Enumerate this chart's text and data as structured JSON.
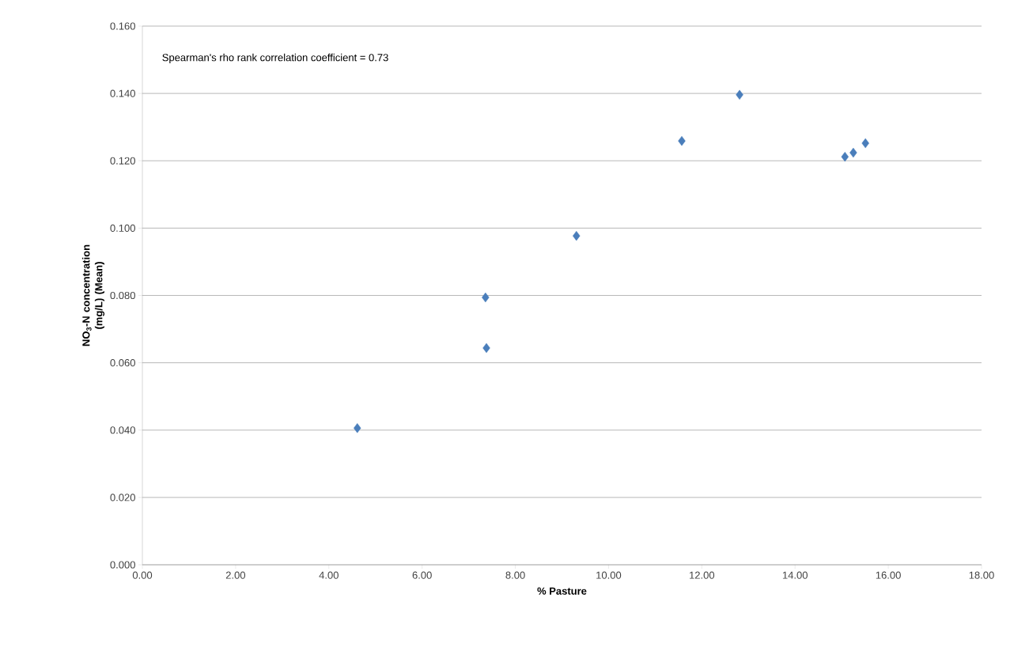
{
  "chart_data": {
    "type": "scatter",
    "xlabel": "% Pasture",
    "ylabel": "NO$_{3}$-N concentration (mg/L) (Mean)",
    "annotations": [
      "Spearman's rho rank correlation coefficient  = 0.73"
    ],
    "x": [
      4.61,
      7.36,
      7.38,
      9.31,
      11.57,
      12.81,
      15.07,
      15.25,
      15.51
    ],
    "values": [
      0.0406,
      0.0794,
      0.0644,
      0.0977,
      0.1259,
      0.1396,
      0.1212,
      0.1224,
      0.1252
    ],
    "color": "#4a7ebb",
    "marker": "diamond",
    "grid": "y",
    "xlim": [
      0,
      18
    ],
    "ylim": [
      0,
      0.16
    ],
    "xticks": [
      {
        "value": 0,
        "label": "0.00"
      },
      {
        "value": 2,
        "label": "2.00"
      },
      {
        "value": 4,
        "label": "4.00"
      },
      {
        "value": 6,
        "label": "6.00"
      },
      {
        "value": 8,
        "label": "8.00"
      },
      {
        "value": 10,
        "label": "10.00"
      },
      {
        "value": 12,
        "label": "12.00"
      },
      {
        "value": 14,
        "label": "14.00"
      },
      {
        "value": 16,
        "label": "16.00"
      },
      {
        "value": 18,
        "label": "18.00"
      }
    ],
    "yticks": [
      {
        "value": 0,
        "label": "0.000"
      },
      {
        "value": 0.02,
        "label": "0.020"
      },
      {
        "value": 0.04,
        "label": "0.040"
      },
      {
        "value": 0.06,
        "label": "0.060"
      },
      {
        "value": 0.08,
        "label": "0.080"
      },
      {
        "value": 0.1,
        "label": "0.100"
      },
      {
        "value": 0.12,
        "label": "0.120"
      },
      {
        "value": 0.14,
        "label": "0.140"
      },
      {
        "value": 0.16,
        "label": "0.160"
      }
    ]
  }
}
